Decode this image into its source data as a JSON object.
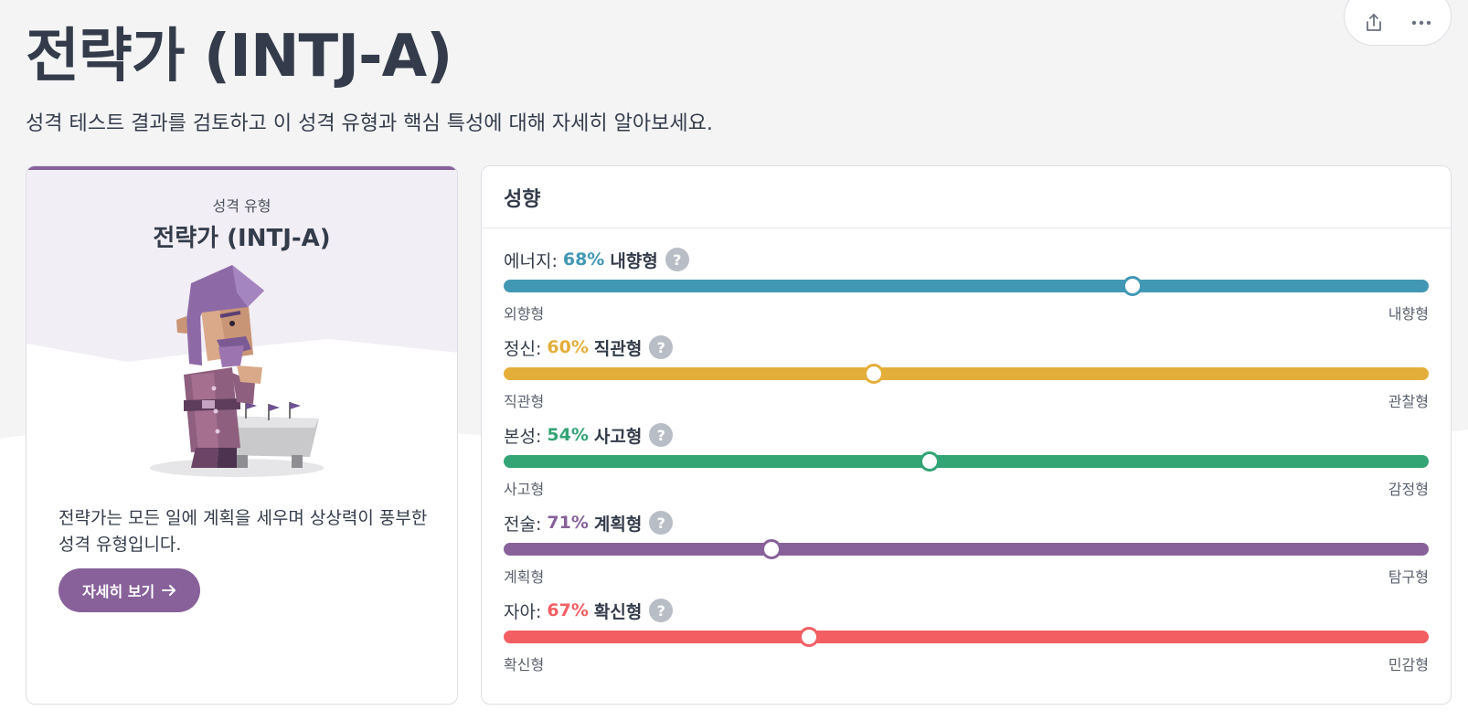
{
  "header": {
    "title": "전략가 (INTJ-A)",
    "subtitle": "성격 테스트 결과를 검토하고 이 성격 유형과 핵심 특성에 대해 자세히 알아보세요."
  },
  "toolbar": {
    "share_icon": "share-icon",
    "more_icon": "more-icon"
  },
  "type_card": {
    "label": "성격 유형",
    "name": "전략가 (INTJ-A)",
    "description": "전략가는 모든 일에 계획을 세우며 상상력이 풍부한 성격 유형입니다.",
    "button_label": "자세히 보기",
    "button_icon": "arrow-right-icon",
    "accent_color": "#88619a"
  },
  "traits": {
    "title": "성향",
    "items": [
      {
        "name": "에너지:",
        "percent": "68%",
        "side": "내향형",
        "left_pole": "외향형",
        "right_pole": "내향형",
        "color": "#4298b4",
        "knob_pos": 0.68
      },
      {
        "name": "정신:",
        "percent": "60%",
        "side": "직관형",
        "left_pole": "직관형",
        "right_pole": "관찰형",
        "color": "#e4ae3a",
        "knob_pos": 0.4
      },
      {
        "name": "본성:",
        "percent": "54%",
        "side": "사고형",
        "left_pole": "사고형",
        "right_pole": "감정형",
        "color": "#33a474",
        "knob_pos": 0.46
      },
      {
        "name": "전술:",
        "percent": "71%",
        "side": "계획형",
        "left_pole": "계획형",
        "right_pole": "탐구형",
        "color": "#88619a",
        "knob_pos": 0.29
      },
      {
        "name": "자아:",
        "percent": "67%",
        "side": "확신형",
        "left_pole": "확신형",
        "right_pole": "민감형",
        "color": "#f25e62",
        "knob_pos": 0.33
      }
    ]
  }
}
